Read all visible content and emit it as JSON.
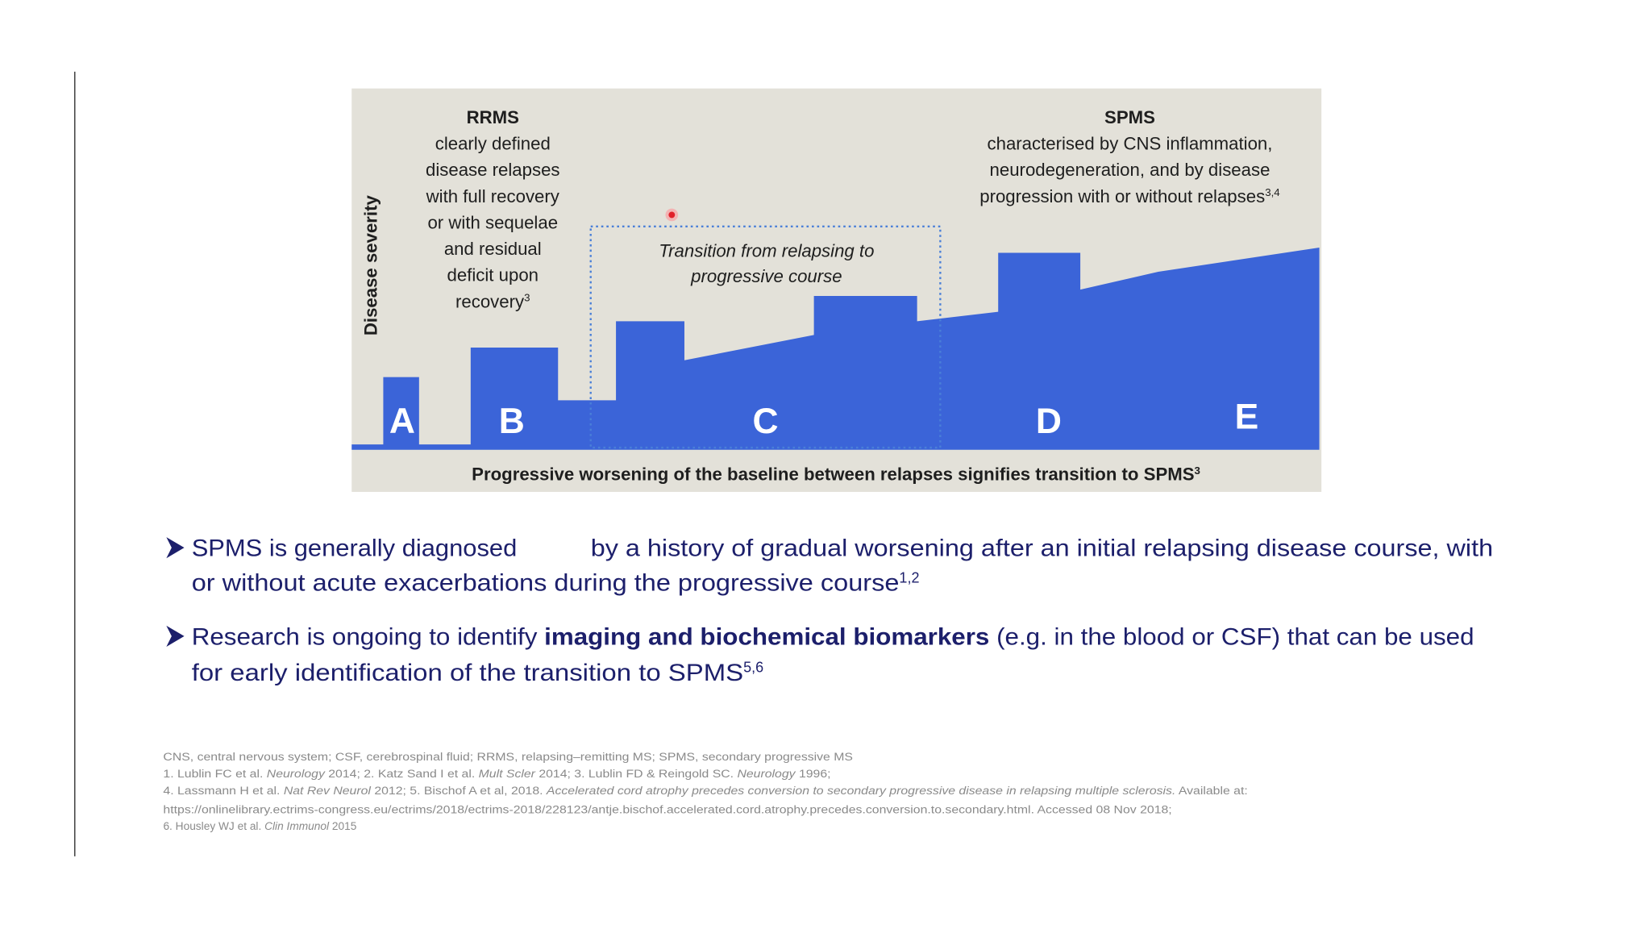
{
  "diagram": {
    "y_axis_label": "Disease severity",
    "rrms": {
      "title": "RRMS",
      "lines": [
        "clearly defined",
        "disease relapses",
        "with full recovery",
        "or with sequelae",
        "and residual",
        "deficit upon",
        "recovery"
      ],
      "sup": "3"
    },
    "spms": {
      "title": "SPMS",
      "lines": [
        "characterised by CNS inflammation,",
        "neurodegeneration, and by disease",
        "progression with or without relapses"
      ],
      "sup": "3,4"
    },
    "transition": [
      "Transition from relapsing to",
      "progressive course"
    ],
    "phases": [
      "A",
      "B",
      "C",
      "D",
      "E"
    ],
    "caption": {
      "text": "Progressive worsening of the baseline between relapses signifies transition to SPMS",
      "sup": "3"
    }
  },
  "bullets": [
    {
      "line1a": "SPMS is generally diagnosed",
      "line1b": "by a history of gradual worsening after an initial relapsing disease course, with",
      "line2": "or without acute exacerbations during the progressive course",
      "sup": "1,2"
    },
    {
      "line1a": "Research is ongoing to identify ",
      "bold": "imaging and biochemical biomarkers",
      "line1b": " (e.g. in the blood or CSF) that can be used",
      "line2": "for early identification of the transition to SPMS",
      "sup": "5,6"
    }
  ],
  "footnotes": [
    [
      "CNS, central nervous system; CSF, cerebrospinal fluid; RRMS, relapsing–remitting MS; SPMS, secondary progressive MS"
    ],
    [
      "1. Lublin FC et al. ",
      "Neurology",
      " 2014; 2. Katz Sand I et al. ",
      "Mult Scler",
      " 2014; 3. Lublin FD & Reingold SC. ",
      "Neurology",
      " 1996;"
    ],
    [
      "4. Lassmann H et al. ",
      "Nat Rev Neurol",
      " 2012; 5. Bischof A et al, 2018. ",
      "Accelerated cord atrophy precedes conversion to secondary progressive disease in relapsing multiple sclerosis.",
      " Available at:"
    ],
    [
      "https://onlinelibrary.ectrims-congress.eu/ectrims/2018/ectrims-2018/228123/antje.bischof.accelerated.cord.atrophy.precedes.conversion.to.secondary.html. Accessed 08 Nov 2018;"
    ],
    [
      "6. Housley WJ et al. ",
      "Clin Immunol",
      " 2015"
    ]
  ]
}
